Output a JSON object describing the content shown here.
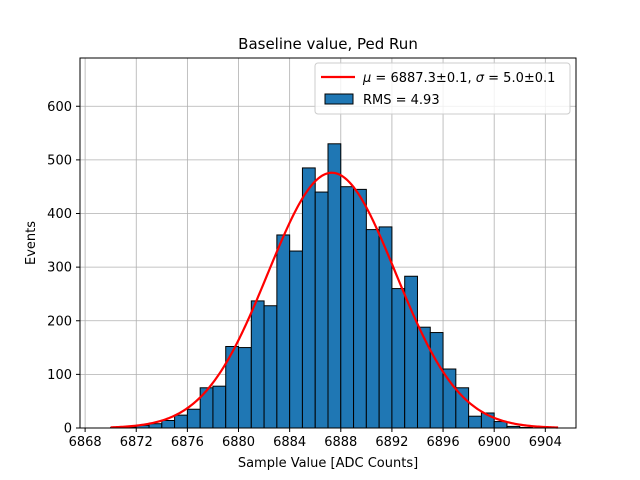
{
  "chart_data": {
    "type": "histogram",
    "title": "Baseline value, Ped Run",
    "xlabel": "Sample Value [ADC Counts]",
    "ylabel": "Events",
    "xlim": [
      6867.6,
      6906.4
    ],
    "ylim": [
      0,
      690
    ],
    "xticks": [
      6868,
      6872,
      6876,
      6880,
      6884,
      6888,
      6892,
      6896,
      6900,
      6904
    ],
    "yticks": [
      0,
      100,
      200,
      300,
      400,
      500,
      600
    ],
    "grid": true,
    "legend_position": "top-right",
    "bin_edges": [
      6870,
      6871,
      6872,
      6873,
      6874,
      6875,
      6876,
      6877,
      6878,
      6879,
      6880,
      6881,
      6882,
      6883,
      6884,
      6885,
      6886,
      6887,
      6888,
      6889,
      6890,
      6891,
      6892,
      6893,
      6894,
      6895,
      6896,
      6897,
      6898,
      6899,
      6900,
      6901,
      6902,
      6903,
      6904,
      6905
    ],
    "counts": [
      1,
      2,
      5,
      8,
      14,
      24,
      35,
      75,
      78,
      152,
      150,
      237,
      228,
      360,
      330,
      485,
      440,
      530,
      450,
      445,
      370,
      375,
      260,
      283,
      188,
      178,
      110,
      75,
      22,
      28,
      12,
      3,
      1,
      0,
      0
    ],
    "bar_color": "#1f77b4",
    "fit": {
      "type": "gaussian",
      "mu": 6887.3,
      "sigma": 5.0,
      "peak": 476,
      "x_range": [
        6870,
        6905
      ],
      "color": "#ff0000"
    },
    "legend": [
      {
        "label_prefix": "μ",
        "label": " = 6887.3±0.1, ",
        "label_sigma": "σ",
        "label_end": " = 5.0±0.1",
        "kind": "line"
      },
      {
        "label": "RMS = 4.93",
        "kind": "patch"
      }
    ]
  }
}
